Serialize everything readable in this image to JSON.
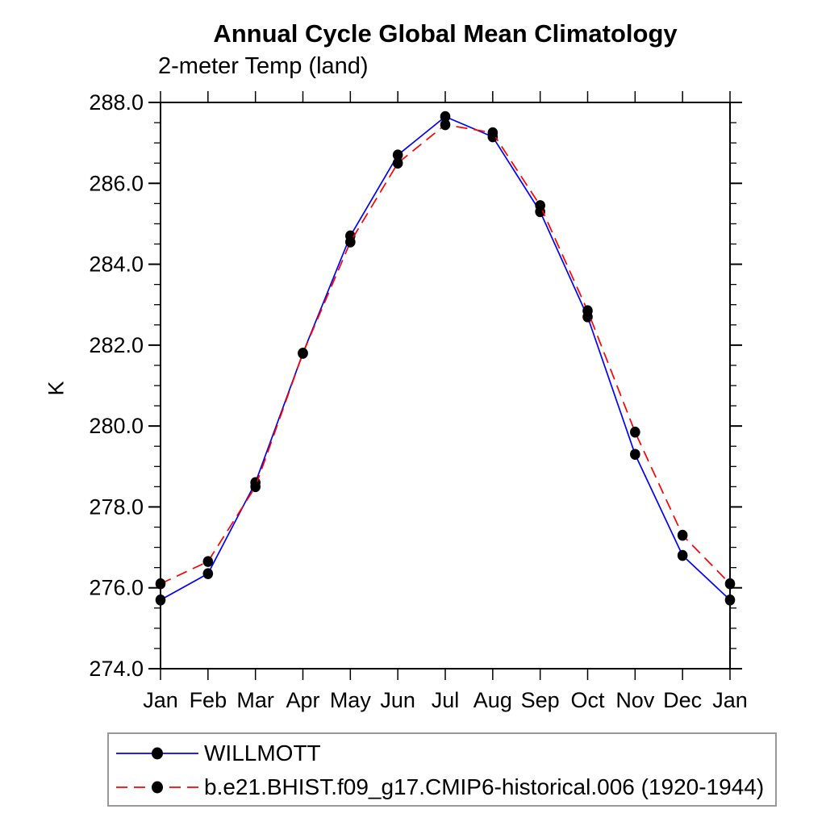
{
  "title": "Annual Cycle Global Mean Climatology",
  "subtitle": "2-meter Temp (land)",
  "chart_data": {
    "type": "line",
    "categories": [
      "Jan",
      "Feb",
      "Mar",
      "Apr",
      "May",
      "Jun",
      "Jul",
      "Aug",
      "Sep",
      "Oct",
      "Nov",
      "Dec",
      "Jan"
    ],
    "ylabel": "K",
    "ylim": [
      274.0,
      288.0
    ],
    "ytick_interval": 2.0,
    "yminor_interval": 0.5,
    "ytick_labels": [
      "274.0",
      "276.0",
      "278.0",
      "280.0",
      "282.0",
      "284.0",
      "286.0",
      "288.0"
    ],
    "grid": false,
    "legend_position": "bottom-left",
    "series": [
      {
        "name": "WILLMOTT",
        "color": "#0000ff",
        "style": "solid",
        "marker": "dot",
        "marker_color": "#000000",
        "values": [
          275.7,
          276.35,
          278.6,
          281.8,
          284.7,
          286.7,
          287.65,
          287.15,
          285.3,
          282.7,
          279.3,
          276.8,
          275.7
        ]
      },
      {
        "name": "b.e21.BHIST.f09_g17.CMIP6-historical.006 (1920-1944)",
        "color": "#ff0000",
        "style": "dashed",
        "marker": "dot",
        "marker_color": "#000000",
        "values": [
          276.1,
          276.65,
          278.5,
          281.8,
          284.55,
          286.5,
          287.45,
          287.25,
          285.45,
          282.85,
          279.85,
          277.3,
          276.1
        ]
      }
    ]
  }
}
